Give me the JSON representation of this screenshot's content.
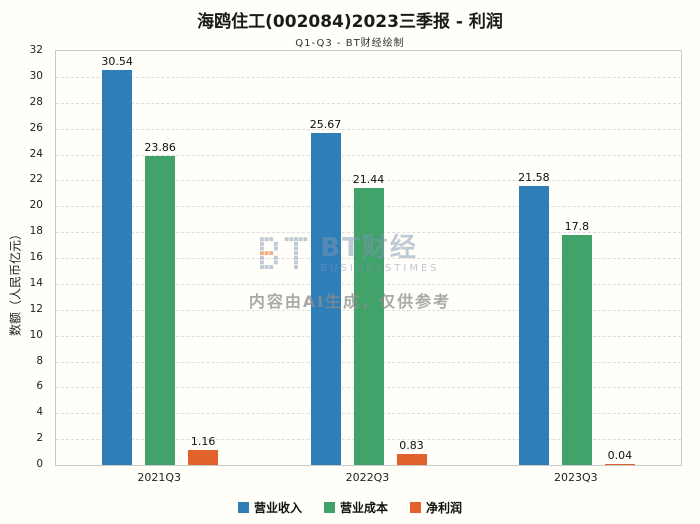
{
  "chart_data": {
    "type": "bar",
    "title": "海鸥住工(002084)2023三季报 - 利润",
    "subtitle": "Q1-Q3 - BT财经绘制",
    "ylabel": "数额（人民币亿元）",
    "categories": [
      "2021Q3",
      "2022Q3",
      "2023Q3"
    ],
    "series": [
      {
        "name": "营业收入",
        "color": "#2e7eb8",
        "values": [
          30.54,
          25.67,
          21.58
        ]
      },
      {
        "name": "营业成本",
        "color": "#41a36a",
        "values": [
          23.86,
          21.44,
          17.8
        ]
      },
      {
        "name": "净利润",
        "color": "#e2622b",
        "values": [
          1.16,
          0.83,
          0.04
        ]
      }
    ],
    "ylim": [
      0,
      32
    ],
    "ytick_step": 2,
    "grid": true,
    "legend_position": "bottom"
  },
  "watermark": {
    "brand": "BT财经",
    "brand_sub": "BUSINESSTIMES",
    "ai_note": "内容由AI生成，仅供参考",
    "icon": "bt-pixel-logo-icon"
  }
}
